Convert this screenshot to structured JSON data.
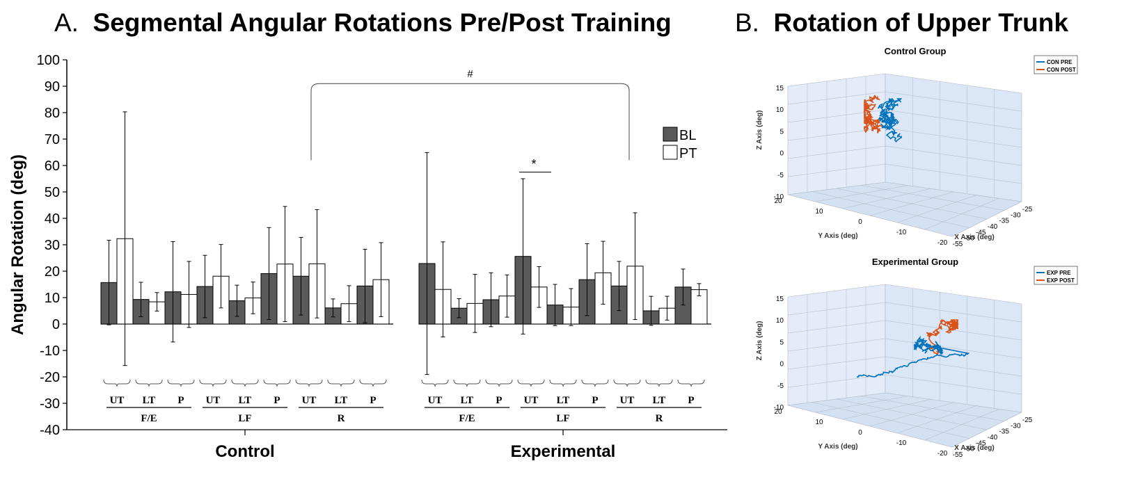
{
  "panelA": {
    "letter": "A.",
    "title": "Segmental Angular Rotations Pre/Post Training"
  },
  "panelB": {
    "letter": "B.",
    "title": "Rotation of Upper Trunk"
  },
  "chart_data": [
    {
      "type": "bar",
      "ylabel": "Angular Rotation (deg)",
      "ylim": [
        -40,
        100
      ],
      "yticks": [
        -40,
        -30,
        -20,
        -10,
        0,
        10,
        20,
        30,
        40,
        50,
        60,
        70,
        80,
        90,
        100
      ],
      "legend": {
        "placement": "right",
        "entries": [
          "BL",
          "PT"
        ]
      },
      "colors": {
        "BL": "#5a5a5a",
        "PT": "#ffffff"
      },
      "groups": [
        {
          "name": "Control",
          "subgroups": [
            {
              "name": "F/E",
              "segments": [
                {
                  "label": "UT",
                  "BL": 15.7,
                  "BL_err": 16,
                  "PT": 32.3,
                  "PT_err": 48
                },
                {
                  "label": "LT",
                  "BL": 9.3,
                  "BL_err": 6.5,
                  "PT": 8.4,
                  "PT_err": 3.5
                },
                {
                  "label": "P",
                  "BL": 12.2,
                  "BL_err": 19,
                  "PT": 11.2,
                  "PT_err": 12.5
                }
              ]
            },
            {
              "name": "LF",
              "segments": [
                {
                  "label": "UT",
                  "BL": 14.2,
                  "BL_err": 11.8,
                  "PT": 18.1,
                  "PT_err": 12
                },
                {
                  "label": "LT",
                  "BL": 8.8,
                  "BL_err": 5.9,
                  "PT": 9.9,
                  "PT_err": 6
                },
                {
                  "label": "P",
                  "BL": 19.1,
                  "BL_err": 17.4,
                  "PT": 22.7,
                  "PT_err": 21.8
                }
              ]
            },
            {
              "name": "R",
              "segments": [
                {
                  "label": "UT",
                  "BL": 18.1,
                  "BL_err": 14.7,
                  "PT": 22.8,
                  "PT_err": 20.5
                },
                {
                  "label": "LT",
                  "BL": 6.1,
                  "BL_err": 3.4,
                  "PT": 7.7,
                  "PT_err": 6.8
                },
                {
                  "label": "P",
                  "BL": 14.4,
                  "BL_err": 13.9,
                  "PT": 16.8,
                  "PT_err": 14
                }
              ]
            }
          ]
        },
        {
          "name": "Experimental",
          "subgroups": [
            {
              "name": "F/E",
              "segments": [
                {
                  "label": "UT",
                  "BL": 22.9,
                  "BL_err": 42,
                  "PT": 13.1,
                  "PT_err": 18
                },
                {
                  "label": "LT",
                  "BL": 6,
                  "BL_err": 3.6,
                  "PT": 7.8,
                  "PT_err": 11
                },
                {
                  "label": "P",
                  "BL": 9.2,
                  "BL_err": 10.2,
                  "PT": 10.6,
                  "PT_err": 8
                }
              ]
            },
            {
              "name": "LF",
              "segments": [
                {
                  "label": "UT",
                  "BL": 25.6,
                  "BL_err": 29.4,
                  "PT": 14,
                  "PT_err": 7.7
                },
                {
                  "label": "LT",
                  "BL": 7.2,
                  "BL_err": 7.8,
                  "PT": 6.4,
                  "PT_err": 7
                },
                {
                  "label": "P",
                  "BL": 16.8,
                  "BL_err": 13.6,
                  "PT": 19.4,
                  "PT_err": 11.9
                }
              ]
            },
            {
              "name": "R",
              "segments": [
                {
                  "label": "UT",
                  "BL": 14.4,
                  "BL_err": 9.3,
                  "PT": 21.9,
                  "PT_err": 20.2
                },
                {
                  "label": "LT",
                  "BL": 5,
                  "BL_err": 5.5,
                  "PT": 6,
                  "PT_err": 4.5
                },
                {
                  "label": "P",
                  "BL": 14,
                  "BL_err": 6.8,
                  "PT": 13,
                  "PT_err": 2.3
                }
              ]
            }
          ]
        }
      ],
      "annotations": {
        "bracket": "#",
        "star": "*"
      }
    },
    {
      "type": "line3d",
      "title": "Control Group",
      "xlabel": "X Axis (deg)",
      "ylabel": "Y Axis (deg)",
      "zlabel": "Z Axis (deg)",
      "xticks": [
        -55,
        -50,
        -45,
        -40,
        -35,
        -30,
        -25
      ],
      "yticks": [
        -20,
        -10,
        0,
        10,
        20
      ],
      "zticks": [
        -10,
        -5,
        0,
        5,
        10,
        15
      ],
      "legend": {
        "placement": "top-right",
        "entries": [
          "CON PRE",
          "CON POST"
        ]
      },
      "colors": {
        "pre": "#0072bd",
        "post": "#d95319"
      }
    },
    {
      "type": "line3d",
      "title": "Experimental Group",
      "xlabel": "X Axis (deg)",
      "ylabel": "Y Axis (deg)",
      "zlabel": "Z Axis (deg)",
      "xticks": [
        -55,
        -50,
        -45,
        -40,
        -35,
        -30,
        -25
      ],
      "yticks": [
        -20,
        -10,
        0,
        10,
        20
      ],
      "zticks": [
        -10,
        -5,
        0,
        5,
        10,
        15
      ],
      "legend": {
        "placement": "top-right",
        "entries": [
          "EXP PRE",
          "EXP POST"
        ]
      },
      "colors": {
        "pre": "#0072bd",
        "post": "#d95319"
      }
    }
  ]
}
